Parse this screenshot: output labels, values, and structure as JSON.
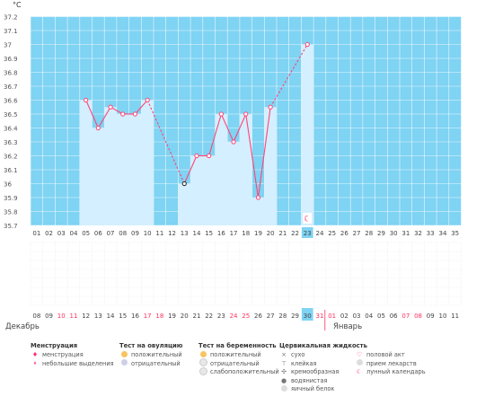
{
  "chart_data": {
    "type": "line",
    "unit_label": "°C",
    "ylim": [
      35.7,
      37.2
    ],
    "y_ticks": [
      "35.7",
      "35.8",
      "35.9",
      "36",
      "36.1",
      "36.2",
      "36.3",
      "36.4",
      "36.5",
      "36.6",
      "36.7",
      "36.8",
      "36.9",
      "37",
      "37.1",
      "37.2"
    ],
    "cycle_days": [
      "01",
      "02",
      "03",
      "04",
      "05",
      "06",
      "07",
      "08",
      "09",
      "10",
      "11",
      "12",
      "13",
      "14",
      "15",
      "16",
      "17",
      "18",
      "19",
      "20",
      "21",
      "22",
      "23",
      "24",
      "25",
      "26",
      "27",
      "28",
      "29",
      "30",
      "31",
      "32",
      "33",
      "34",
      "35"
    ],
    "highlighted_day": "23",
    "points": [
      {
        "day": 5,
        "value": 36.6
      },
      {
        "day": 6,
        "value": 36.4
      },
      {
        "day": 7,
        "value": 36.55
      },
      {
        "day": 8,
        "value": 36.5
      },
      {
        "day": 9,
        "value": 36.5
      },
      {
        "day": 10,
        "value": 36.6
      },
      {
        "day": 13,
        "value": 36.0,
        "marker": "black"
      },
      {
        "day": 14,
        "value": 36.2
      },
      {
        "day": 15,
        "value": 36.2
      },
      {
        "day": 16,
        "value": 36.5
      },
      {
        "day": 17,
        "value": 36.3
      },
      {
        "day": 18,
        "value": 36.5
      },
      {
        "day": 19,
        "value": 35.9
      },
      {
        "day": 20,
        "value": 36.55
      },
      {
        "day": 23,
        "value": 37.0
      }
    ],
    "dashed_gaps": [
      [
        10,
        13
      ],
      [
        20,
        23
      ]
    ],
    "moon_day": 23,
    "dates": [
      {
        "label": "08",
        "red": false
      },
      {
        "label": "09",
        "red": false
      },
      {
        "label": "10",
        "red": true
      },
      {
        "label": "11",
        "red": true
      },
      {
        "label": "12",
        "red": false
      },
      {
        "label": "13",
        "red": false
      },
      {
        "label": "14",
        "red": false
      },
      {
        "label": "15",
        "red": false
      },
      {
        "label": "16",
        "red": false
      },
      {
        "label": "17",
        "red": true
      },
      {
        "label": "18",
        "red": true
      },
      {
        "label": "19",
        "red": false
      },
      {
        "label": "20",
        "red": false
      },
      {
        "label": "21",
        "red": false
      },
      {
        "label": "22",
        "red": false
      },
      {
        "label": "23",
        "red": false
      },
      {
        "label": "24",
        "red": true
      },
      {
        "label": "25",
        "red": true
      },
      {
        "label": "26",
        "red": false
      },
      {
        "label": "27",
        "red": false
      },
      {
        "label": "28",
        "red": false
      },
      {
        "label": "29",
        "red": false
      },
      {
        "label": "30",
        "red": false
      },
      {
        "label": "31",
        "red": true
      },
      {
        "label": "01",
        "red": true
      },
      {
        "label": "02",
        "red": false
      },
      {
        "label": "03",
        "red": false
      },
      {
        "label": "04",
        "red": false
      },
      {
        "label": "05",
        "red": false
      },
      {
        "label": "06",
        "red": false
      },
      {
        "label": "07",
        "red": true
      },
      {
        "label": "08",
        "red": true
      },
      {
        "label": "09",
        "red": false
      },
      {
        "label": "10",
        "red": false
      },
      {
        "label": "11",
        "red": false
      }
    ],
    "month_start": "Декабрь",
    "month_next": "Январь",
    "colors": {
      "background": "#7fd3f3",
      "column": "#d4efff",
      "line": "#ff4577",
      "highlight_cell": "#7fd3f3",
      "red_text": "#ff3060",
      "grid": "#ffffff"
    }
  },
  "legend": {
    "menstruation": {
      "title": "Менструация",
      "items": [
        "менструация",
        "небольшие выделения"
      ]
    },
    "ovulation_test": {
      "title": "Тест на овуляцию",
      "items": [
        "положительный",
        "отрицательный"
      ]
    },
    "pregnancy_test": {
      "title": "Тест на беременность",
      "items": [
        "положительный",
        "отрицательный",
        "слабоположительный"
      ]
    },
    "cervical_fluid": {
      "title": "Цервикальная жидкость",
      "items": [
        "сухо",
        "клейкая",
        "кремообразная",
        "водянистая",
        "яичный белок"
      ]
    },
    "other": {
      "items": [
        "половой акт",
        "прием лекарств",
        "лунный календарь"
      ]
    }
  }
}
